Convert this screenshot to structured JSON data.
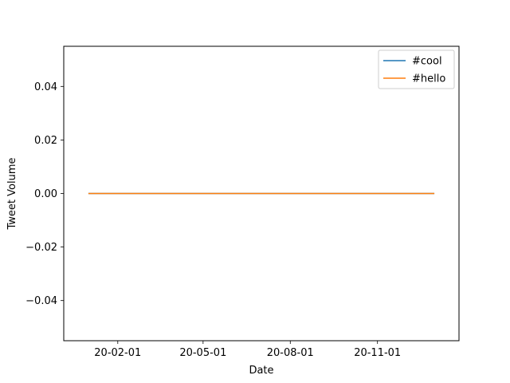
{
  "chart_data": {
    "type": "line",
    "title": "",
    "xlabel": "Date",
    "ylabel": "Tweet Volume",
    "x": [
      "2020-01-01",
      "2020-12-31"
    ],
    "xlim": [
      "2019-12-06",
      "2021-01-26"
    ],
    "ylim": [
      -0.055,
      0.055
    ],
    "x_ticks": [
      {
        "date": "2020-02-01",
        "label": "20-02-01"
      },
      {
        "date": "2020-05-01",
        "label": "20-05-01"
      },
      {
        "date": "2020-08-01",
        "label": "20-08-01"
      },
      {
        "date": "2020-11-01",
        "label": "20-11-01"
      }
    ],
    "y_ticks": [
      {
        "value": 0.04,
        "label": "0.04"
      },
      {
        "value": 0.02,
        "label": "0.02"
      },
      {
        "value": 0.0,
        "label": "0.00"
      },
      {
        "value": -0.02,
        "label": "−0.02"
      },
      {
        "value": -0.04,
        "label": "−0.04"
      }
    ],
    "grid": false,
    "legend_position": "top-right",
    "series": [
      {
        "name": "#cool",
        "color": "#1f77b4",
        "values": [
          0,
          0
        ]
      },
      {
        "name": "#hello",
        "color": "#ff7f0e",
        "values": [
          0,
          0
        ]
      }
    ]
  }
}
